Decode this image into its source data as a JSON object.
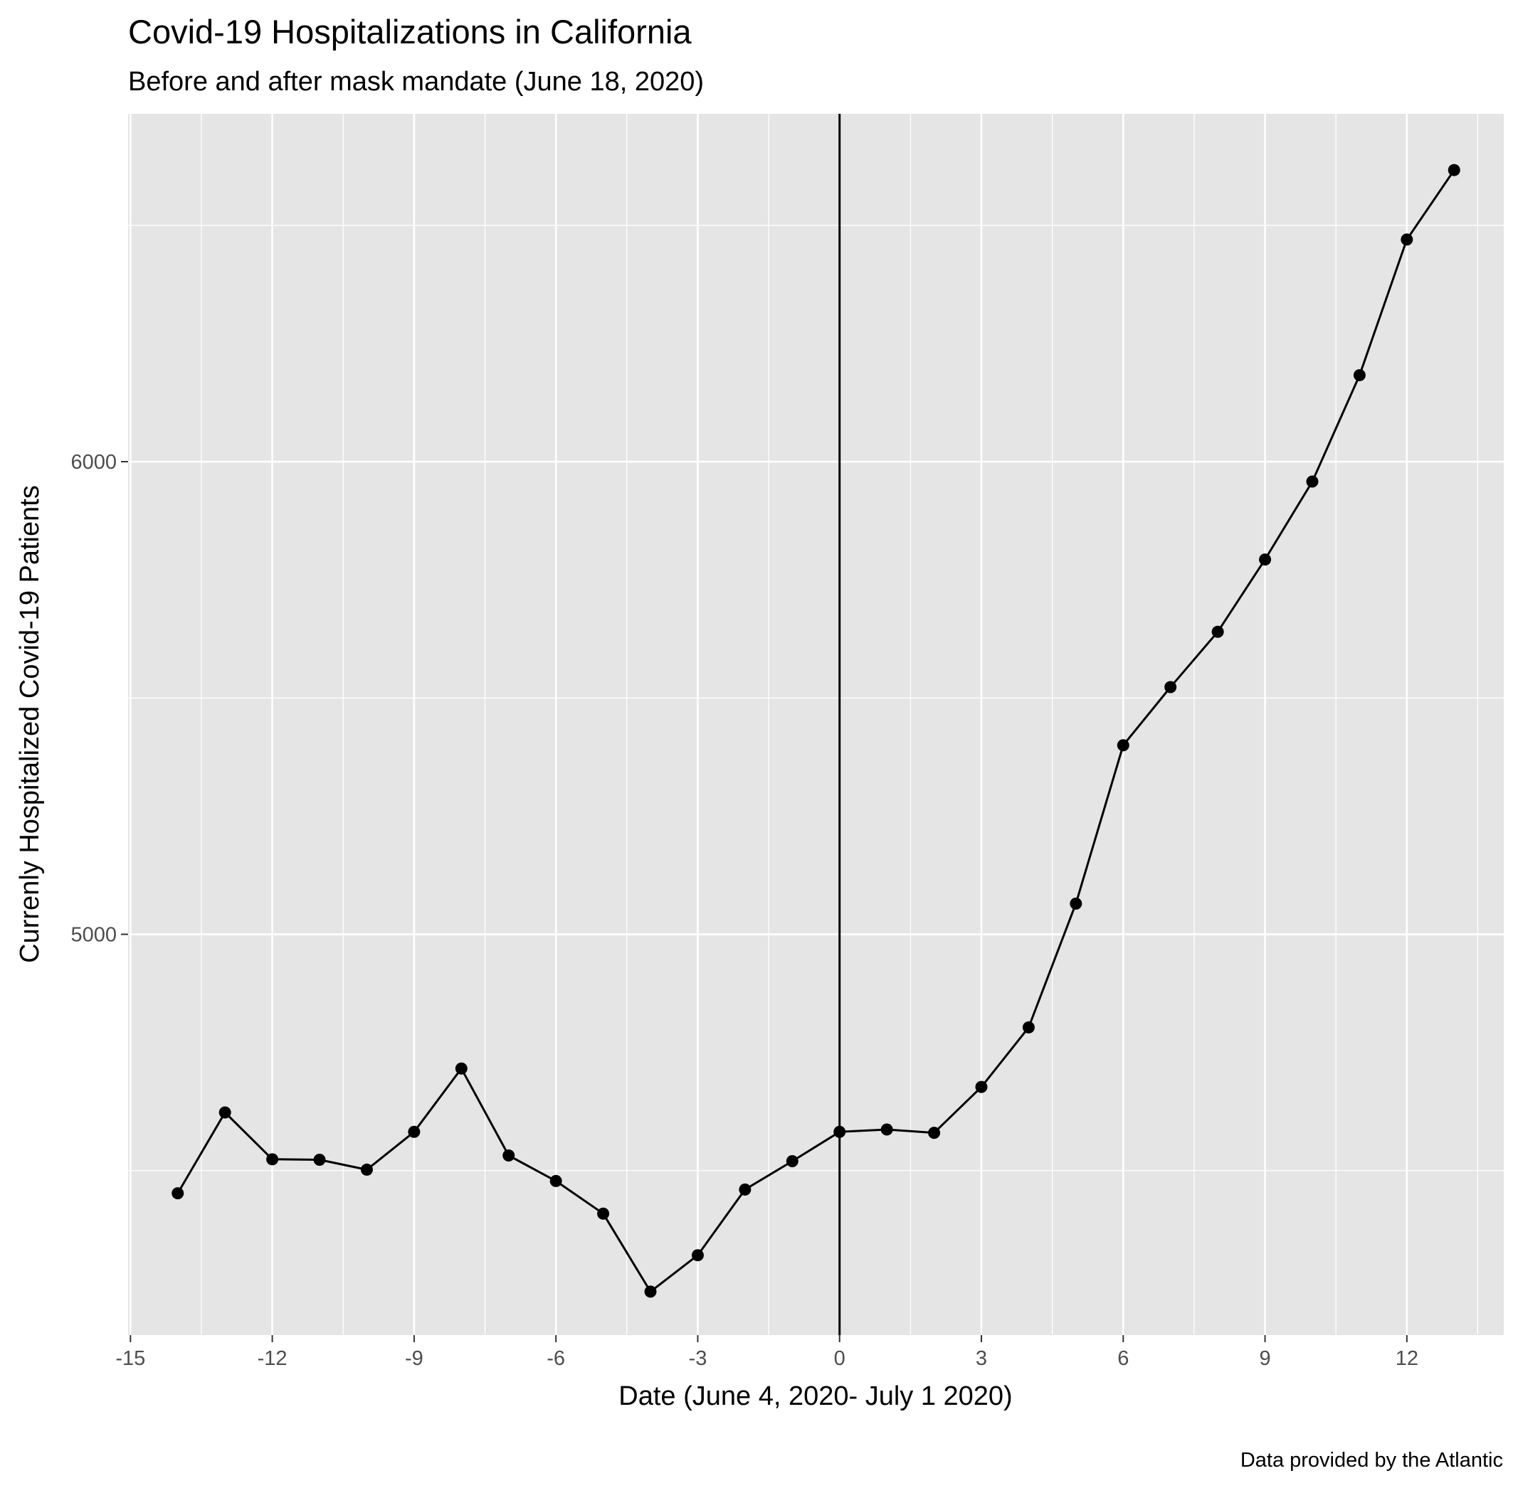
{
  "chart_data": {
    "type": "line",
    "title": "Covid-19 Hospitalizations in California",
    "subtitle": "Before and after mask mandate (June 18, 2020)",
    "xlabel": "Date (June 4, 2020- July 1 2020)",
    "ylabel": "Currenly Hospitalized Covid-19 Patients",
    "caption": "Data provided by the Atlantic",
    "xlim": [
      -15.05,
      14.05
    ],
    "ylim": [
      4152,
      6736
    ],
    "x_ticks": [
      -15,
      -12,
      -9,
      -6,
      -3,
      0,
      3,
      6,
      9,
      12
    ],
    "x_tick_labels": [
      "-15",
      "-12",
      "-9",
      "-6",
      "-3",
      "0",
      "3",
      "6",
      "9",
      "12"
    ],
    "y_ticks": [
      5000,
      6000
    ],
    "y_tick_labels": [
      "5000",
      "6000"
    ],
    "y_minor_grid": [
      4500,
      5500,
      6500
    ],
    "x_minor_grid": [
      -13.5,
      -10.5,
      -7.5,
      -4.5,
      -1.5,
      1.5,
      4.5,
      7.5,
      10.5,
      13.5
    ],
    "vline_x": 0,
    "grid": true,
    "legend": "none",
    "series": [
      {
        "x": [
          -14,
          -13,
          -12,
          -11,
          -10,
          -9,
          -8,
          -7,
          -6,
          -5,
          -4,
          -3,
          -2,
          -1,
          0,
          1,
          2,
          3,
          4,
          5,
          6,
          7,
          8,
          9,
          10,
          11,
          12,
          13
        ],
        "values": [
          4452,
          4623,
          4524,
          4523,
          4502,
          4582,
          4716,
          4532,
          4478,
          4409,
          4244,
          4321,
          4460,
          4520,
          4582,
          4587,
          4580,
          4677,
          4803,
          5065,
          5400,
          5523,
          5640,
          5793,
          5958,
          6183,
          6470,
          6617
        ],
        "color": "#000000"
      }
    ],
    "colors": {
      "panel_background": "#e5e5e5",
      "grid": "#ffffff",
      "line": "#000000",
      "tick_label": "#4d4d4d"
    }
  }
}
